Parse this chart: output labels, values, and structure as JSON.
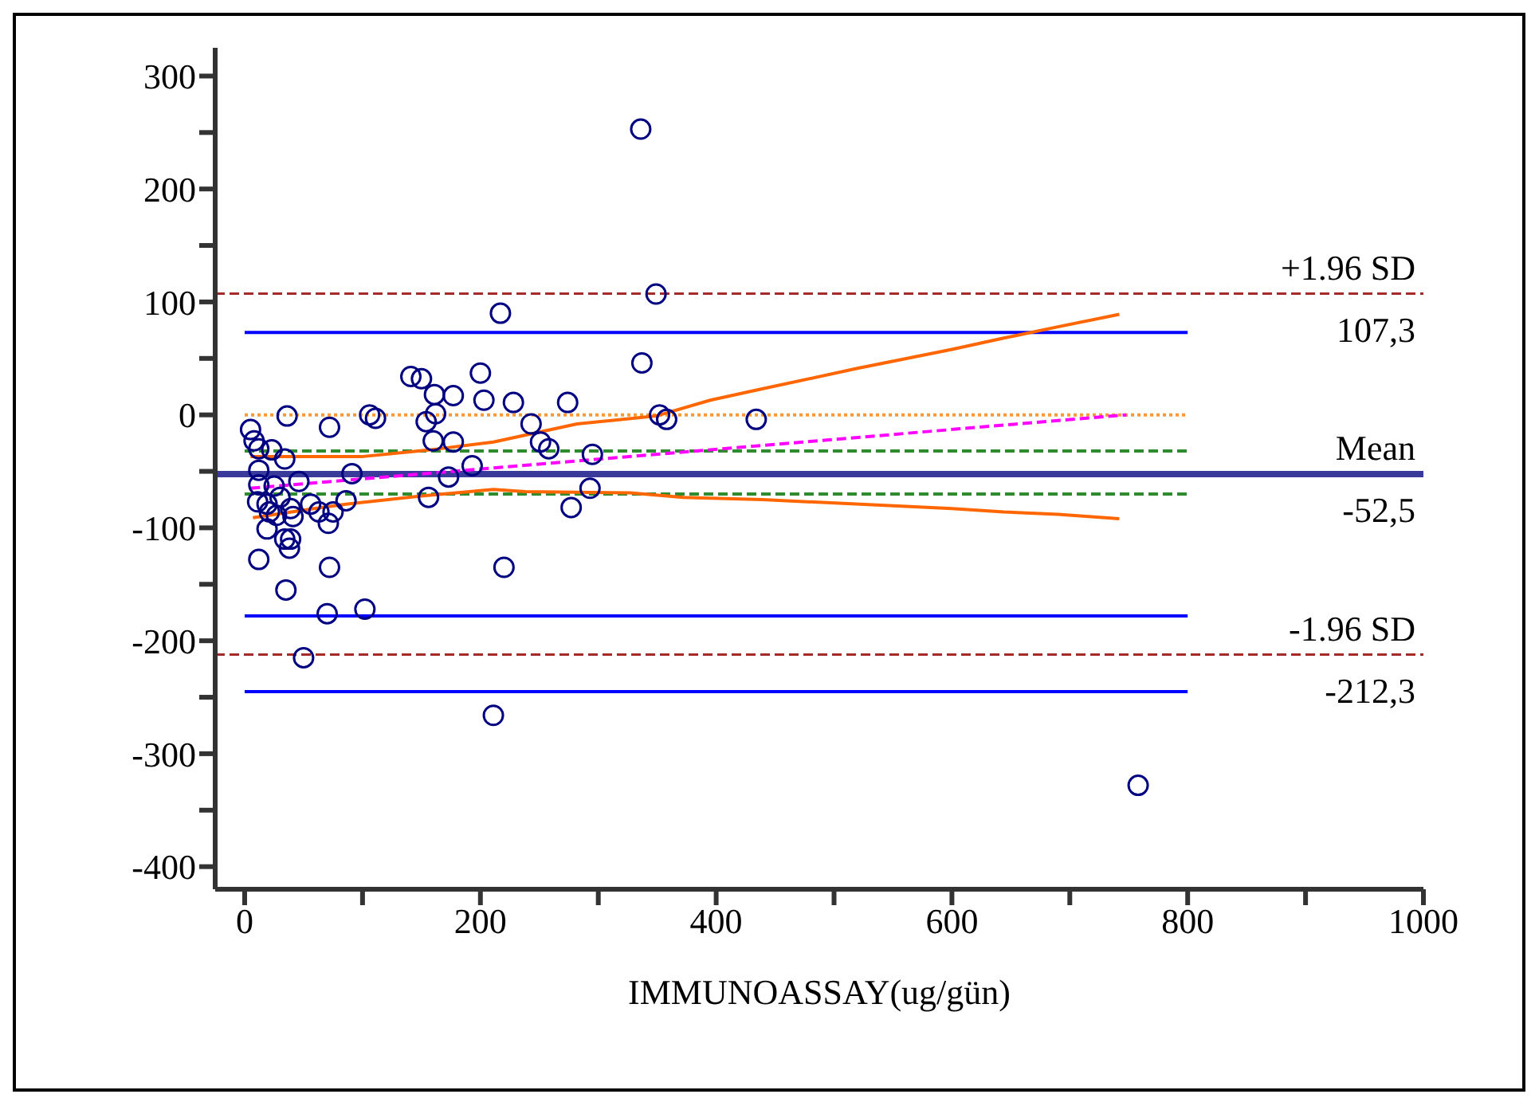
{
  "chart_data": {
    "type": "scatter",
    "xlabel": "IMMUNOASSAY(ug/gün)",
    "xlim": [
      -25,
      1000
    ],
    "xticks": [
      0,
      {
        "value": 100,
        "label": null
      },
      200,
      {
        "value": 300,
        "label": null
      },
      400,
      {
        "value": 500,
        "label": null
      },
      600,
      {
        "value": 700,
        "label": null
      },
      800,
      {
        "value": 900,
        "label": null
      },
      1000
    ],
    "ylim": [
      -420,
      325
    ],
    "yticks": [
      -400,
      {
        "value": -350,
        "label": null
      },
      -300,
      {
        "value": -250,
        "label": null
      },
      -200,
      {
        "value": -150,
        "label": null
      },
      -100,
      {
        "value": -50,
        "label": null
      },
      0,
      {
        "value": 50,
        "label": null
      },
      100,
      {
        "value": 150,
        "label": null
      },
      200,
      {
        "value": 250,
        "label": null
      },
      300
    ],
    "grid": false,
    "legend": false,
    "marker": "circle",
    "series": [
      {
        "color": "#000080",
        "x": [
          336,
          349,
          217,
          5,
          8,
          12,
          23,
          34,
          36,
          72,
          106,
          111,
          141,
          150,
          161,
          154,
          162,
          160,
          177,
          200,
          203,
          228,
          243,
          251,
          258,
          274,
          337,
          352,
          358,
          434,
          177,
          193,
          295,
          293,
          277,
          220,
          211,
          173,
          156,
          91,
          86,
          46,
          12,
          12,
          25,
          11,
          19,
          30,
          21,
          27,
          39,
          41,
          56,
          63,
          75,
          71,
          19,
          34,
          39,
          38,
          12,
          72,
          35,
          70,
          102,
          50,
          758
        ],
        "values": [
          253,
          107,
          90,
          -13,
          -23,
          -30,
          -31,
          -39,
          -1,
          -11,
          0,
          -3,
          34,
          32,
          18,
          -6,
          1,
          -23,
          17,
          37,
          13,
          11,
          -8,
          -24,
          -30,
          11,
          46,
          0,
          -4,
          -4,
          -24,
          -45,
          -35,
          -65,
          -82,
          -135,
          -266,
          -55,
          -73,
          -52,
          -76,
          -59,
          -49,
          -62,
          -63,
          -77,
          -79,
          -73,
          -86,
          -89,
          -83,
          -90,
          -79,
          -86,
          -86,
          -96,
          -101,
          -110,
          -110,
          -118,
          -128,
          -135,
          -155,
          -176,
          -172,
          -215,
          -328
        ]
      },
      {
        "type": "line",
        "marker": "none",
        "color": "#0000ff",
        "line_style": "solid",
        "x": [
          0,
          800
        ],
        "values": [
          73,
          73
        ]
      },
      {
        "type": "line",
        "marker": "none",
        "color": "#0000ff",
        "line_style": "solid",
        "x": [
          0,
          800
        ],
        "values": [
          -178,
          -178
        ]
      },
      {
        "type": "line",
        "marker": "none",
        "color": "#0000ff",
        "line_style": "solid",
        "x": [
          0,
          800
        ],
        "values": [
          -245,
          -245
        ]
      },
      {
        "type": "line",
        "marker": "none",
        "color": "#2e8b2e",
        "line_style": "dashed",
        "x": [
          0,
          800
        ],
        "values": [
          -32,
          -32
        ]
      },
      {
        "type": "line",
        "marker": "none",
        "color": "#2e8b2e",
        "line_style": "dashed",
        "x": [
          0,
          800
        ],
        "values": [
          -70,
          -70
        ]
      },
      {
        "type": "line",
        "marker": "none",
        "color": "#ff9933",
        "line_style": "dotted",
        "x": [
          0,
          800
        ],
        "values": [
          0,
          0
        ]
      },
      {
        "type": "line",
        "marker": "none",
        "color": "#ff00ff",
        "line_style": "dashed",
        "x": [
          5,
          748
        ],
        "values": [
          -65,
          0
        ]
      },
      {
        "type": "line",
        "marker": "none",
        "color": "#ff6600",
        "line_style": "solid",
        "x": [
          5,
          99,
          157,
          211,
          282,
          349,
          395,
          439,
          519,
          600,
          644,
          690,
          742
        ],
        "values": [
          -37,
          -37,
          -31,
          -24,
          -8,
          -1,
          13,
          23,
          41,
          58,
          68,
          78,
          89
        ]
      },
      {
        "type": "line",
        "marker": "none",
        "color": "#ff6600",
        "line_style": "solid",
        "x": [
          7,
          59,
          86,
          148,
          211,
          238,
          327,
          372,
          439,
          600,
          644,
          690,
          742
        ],
        "values": [
          -91,
          -83,
          -79,
          -72,
          -66,
          -68,
          -69,
          -73,
          -75,
          -83,
          -86,
          -88,
          -92
        ]
      }
    ],
    "ref_lines": [
      {
        "axis": "y",
        "value": 107.3,
        "label": "+1.96 SD",
        "color": "#a52a2a",
        "line_style": "dashed"
      },
      {
        "axis": "y",
        "value": -52.5,
        "label": "Mean",
        "color": "#3a3a9a",
        "line_style": "solid"
      },
      {
        "axis": "y",
        "value": -212.3,
        "label": "-1.96 SD",
        "color": "#a52a2a",
        "line_style": "dashed"
      }
    ],
    "annotations": [
      {
        "text": "107,3",
        "y": 107.3
      },
      {
        "text": "-52,5",
        "y": -52.5
      },
      {
        "text": "-212,3",
        "y": -212.3
      }
    ]
  }
}
